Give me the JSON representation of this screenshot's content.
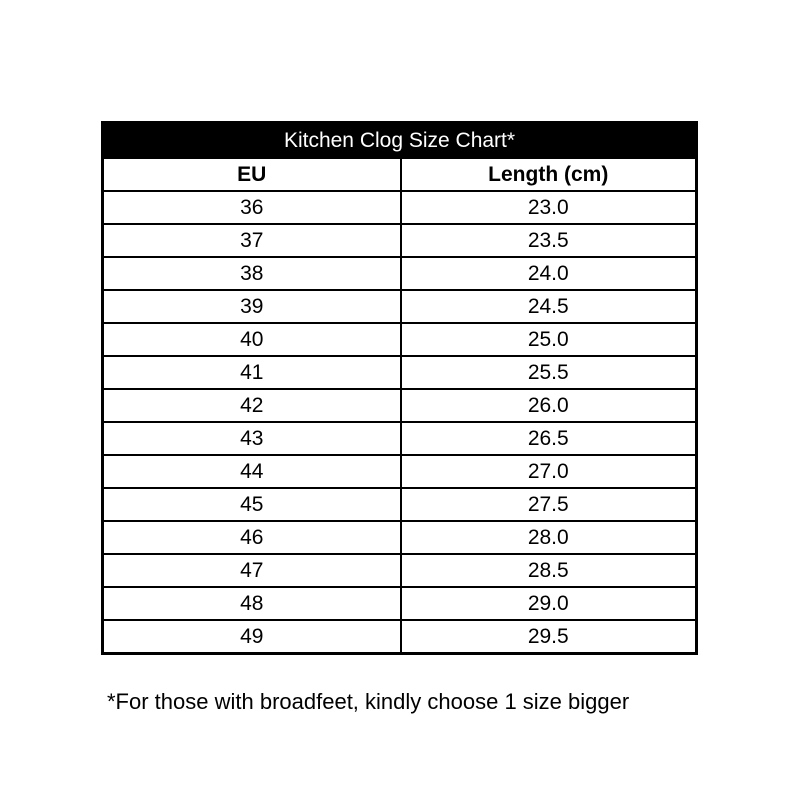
{
  "title": "Kitchen Clog Size Chart*",
  "columns": [
    "EU",
    "Length (cm)"
  ],
  "rows": [
    [
      "36",
      "23.0"
    ],
    [
      "37",
      "23.5"
    ],
    [
      "38",
      "24.0"
    ],
    [
      "39",
      "24.5"
    ],
    [
      "40",
      "25.0"
    ],
    [
      "41",
      "25.5"
    ],
    [
      "42",
      "26.0"
    ],
    [
      "43",
      "26.5"
    ],
    [
      "44",
      "27.0"
    ],
    [
      "45",
      "27.5"
    ],
    [
      "46",
      "28.0"
    ],
    [
      "47",
      "28.5"
    ],
    [
      "48",
      "29.0"
    ],
    [
      "49",
      "29.5"
    ]
  ],
  "footnote": "*For those with broadfeet, kindly choose 1 size bigger"
}
